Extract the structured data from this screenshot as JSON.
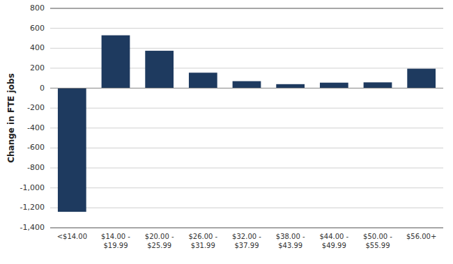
{
  "chart_data": {
    "type": "bar",
    "categories": [
      "<$14.00",
      "$14.00 -\n$19.99",
      "$20.00 -\n$25.99",
      "$26.00 -\n$31.99",
      "$32.00 -\n$37.99",
      "$38.00 -\n$43.99",
      "$44.00 -\n$49.99",
      "$50.00 -\n$55.99",
      "$56.00+"
    ],
    "values": [
      -1240,
      530,
      375,
      155,
      70,
      40,
      55,
      58,
      195
    ],
    "color": "#1e3a5f",
    "ylabel": "Change in FTE jobs",
    "ylim": [
      -1400,
      800
    ],
    "yticks": [
      {
        "value": -1400,
        "label": "-1,400"
      },
      {
        "value": -1200,
        "label": "-1,200"
      },
      {
        "value": -1000,
        "label": "-1,000"
      },
      -800,
      -600,
      -400,
      -200,
      0,
      200,
      400,
      600,
      800
    ],
    "grid": true
  }
}
